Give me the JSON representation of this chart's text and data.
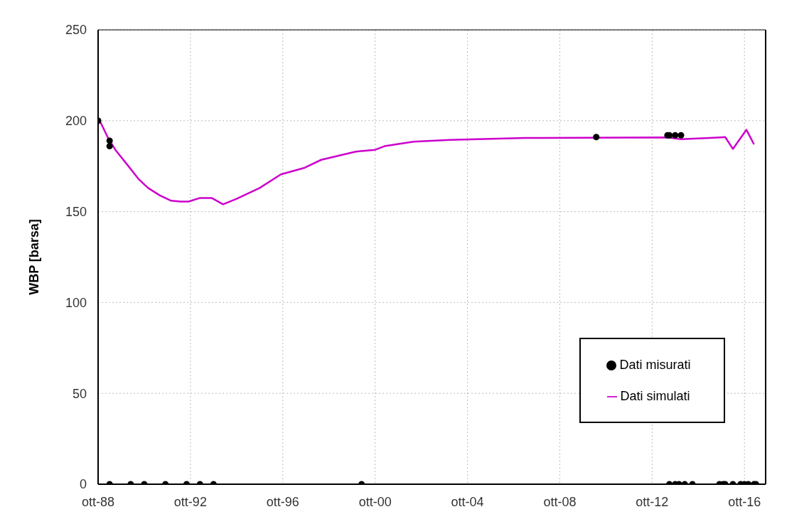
{
  "chart_data": {
    "type": "line",
    "ylabel": "WBP [barsa]",
    "xlim": [
      "1988-10",
      "2017-09"
    ],
    "xticks": [
      {
        "value": "1988-10",
        "label": "ott-88"
      },
      {
        "value": "1992-10",
        "label": "ott-92"
      },
      {
        "value": "1996-10",
        "label": "ott-96"
      },
      {
        "value": "2000-10",
        "label": "ott-00"
      },
      {
        "value": "2004-10",
        "label": "ott-04"
      },
      {
        "value": "2008-10",
        "label": "ott-08"
      },
      {
        "value": "2012-10",
        "label": "ott-12"
      },
      {
        "value": "2016-10",
        "label": "ott-16"
      }
    ],
    "ylim": [
      0,
      250
    ],
    "yticks": [
      0,
      50,
      100,
      150,
      200,
      250
    ],
    "grid": true,
    "legend": "bottom right",
    "series": [
      {
        "name": "Dati misurati",
        "type": "scatter",
        "marker": "circle",
        "color": "#000000",
        "x": [
          "1988-10",
          "1989-04",
          "1989-04",
          "1989-04",
          "1990-03",
          "1990-10",
          "1991-09",
          "1992-08",
          "1993-03",
          "1993-10",
          "2000-03",
          "2010-05",
          "2013-06",
          "2013-07",
          "2013-10",
          "2014-01",
          "2013-07",
          "2013-10",
          "2013-12",
          "2014-03",
          "2014-07",
          "2015-09",
          "2015-11",
          "2015-12",
          "2016-04",
          "2016-08",
          "2016-10",
          "2016-12",
          "2017-03",
          "2017-04"
        ],
        "values": [
          200,
          189,
          186,
          0,
          0,
          0,
          0,
          0,
          0,
          0,
          0,
          191,
          192,
          192,
          192,
          192,
          0,
          0,
          0,
          0,
          0,
          0,
          0,
          0,
          0,
          0,
          0,
          0,
          0,
          0
        ]
      },
      {
        "name": "Dati simulati",
        "marker": "none",
        "color": "#cc00cc",
        "x": [
          "1988-10",
          "1988-11",
          "1989-03",
          "1989-07",
          "1990-01",
          "1990-07",
          "1990-12",
          "1991-06",
          "1991-12",
          "1992-05",
          "1992-09",
          "1993-03",
          "1993-09",
          "1994-03",
          "1994-10",
          "1995-10",
          "1996-09",
          "1997-09",
          "1998-06",
          "1999-12",
          "2000-10",
          "2001-03",
          "2002-06",
          "2004-01",
          "2007-04",
          "2013-06",
          "2014-01",
          "2015-04",
          "2015-12",
          "2016-04",
          "2016-11",
          "2017-03"
        ],
        "values": [
          200,
          199.6,
          191,
          184,
          176,
          168,
          163,
          159,
          156,
          155.5,
          155.5,
          157.5,
          157.5,
          154,
          157,
          163,
          170.5,
          174,
          178.5,
          183,
          184,
          186,
          188.5,
          189.5,
          190.5,
          190.8,
          189.8,
          190.5,
          191,
          184.5,
          195,
          187
        ]
      }
    ]
  }
}
